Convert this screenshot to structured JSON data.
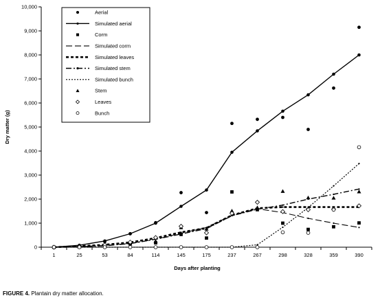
{
  "caption": {
    "label": "FIGURE 4.",
    "text": "Plantain dry matter allocation."
  },
  "chart_data": {
    "type": "line",
    "title": "",
    "xlabel": "Days after planting",
    "ylabel": "Dry matter (g)",
    "x": [
      1,
      25,
      53,
      84,
      114,
      145,
      175,
      237,
      267,
      298,
      328,
      359,
      390
    ],
    "ylim": [
      0,
      10000
    ],
    "yticks": [
      0,
      1000,
      2000,
      3000,
      4000,
      5000,
      6000,
      7000,
      8000,
      9000,
      10000
    ],
    "ytick_labels": [
      "0",
      "1,000",
      "2,000",
      "3,000",
      "4,000",
      "5,000",
      "6,000",
      "7,000",
      "8,000",
      "9,000",
      "10,000"
    ],
    "grid": false,
    "legend_position": "top-left",
    "series": [
      {
        "name": "Aerial",
        "kind": "marker",
        "marker": "dot",
        "values": [
          0,
          50,
          230,
          560,
          1020,
          2270,
          1440,
          5150,
          5320,
          5400,
          4900,
          6620,
          9150
        ]
      },
      {
        "name": "Simulated aerial",
        "kind": "line",
        "style": "solid",
        "values": [
          0,
          80,
          260,
          560,
          1000,
          1700,
          2380,
          3950,
          4840,
          5660,
          6340,
          7200,
          8000
        ]
      },
      {
        "name": "Corm",
        "kind": "marker",
        "marker": "square",
        "values": [
          0,
          20,
          70,
          170,
          180,
          530,
          380,
          2300,
          1560,
          1000,
          740,
          850,
          1010
        ]
      },
      {
        "name": "Simulated corm",
        "kind": "line",
        "style": "long-dash",
        "values": [
          0,
          30,
          70,
          160,
          330,
          580,
          820,
          1330,
          1600,
          1440,
          1200,
          1000,
          820
        ]
      },
      {
        "name": "Simulated leaves",
        "kind": "line",
        "style": "short-dash",
        "values": [
          0,
          40,
          100,
          200,
          380,
          620,
          800,
          1330,
          1620,
          1670,
          1670,
          1670,
          1670
        ]
      },
      {
        "name": "Simulated stem",
        "kind": "line",
        "style": "dash-dot",
        "values": [
          0,
          20,
          60,
          150,
          330,
          550,
          770,
          1310,
          1580,
          1750,
          2000,
          2200,
          2420
        ]
      },
      {
        "name": "Simulated bunch",
        "kind": "line",
        "style": "dotted",
        "values": [
          0,
          0,
          0,
          0,
          0,
          0,
          0,
          0,
          100,
          830,
          1650,
          2550,
          3480
        ]
      },
      {
        "name": "Stem",
        "kind": "marker",
        "marker": "triangle",
        "values": [
          0,
          20,
          50,
          140,
          250,
          820,
          760,
          1510,
          1650,
          2330,
          2060,
          2050,
          2310
        ]
      },
      {
        "name": "Leaves",
        "kind": "marker",
        "marker": "diamond",
        "values": [
          0,
          30,
          90,
          210,
          400,
          870,
          600,
          1410,
          1870,
          1480,
          1560,
          1580,
          1720
        ]
      },
      {
        "name": "Bunch",
        "kind": "marker",
        "marker": "circle",
        "values": [
          0,
          0,
          0,
          0,
          0,
          0,
          0,
          0,
          0,
          620,
          600,
          1560,
          4160
        ]
      }
    ]
  }
}
